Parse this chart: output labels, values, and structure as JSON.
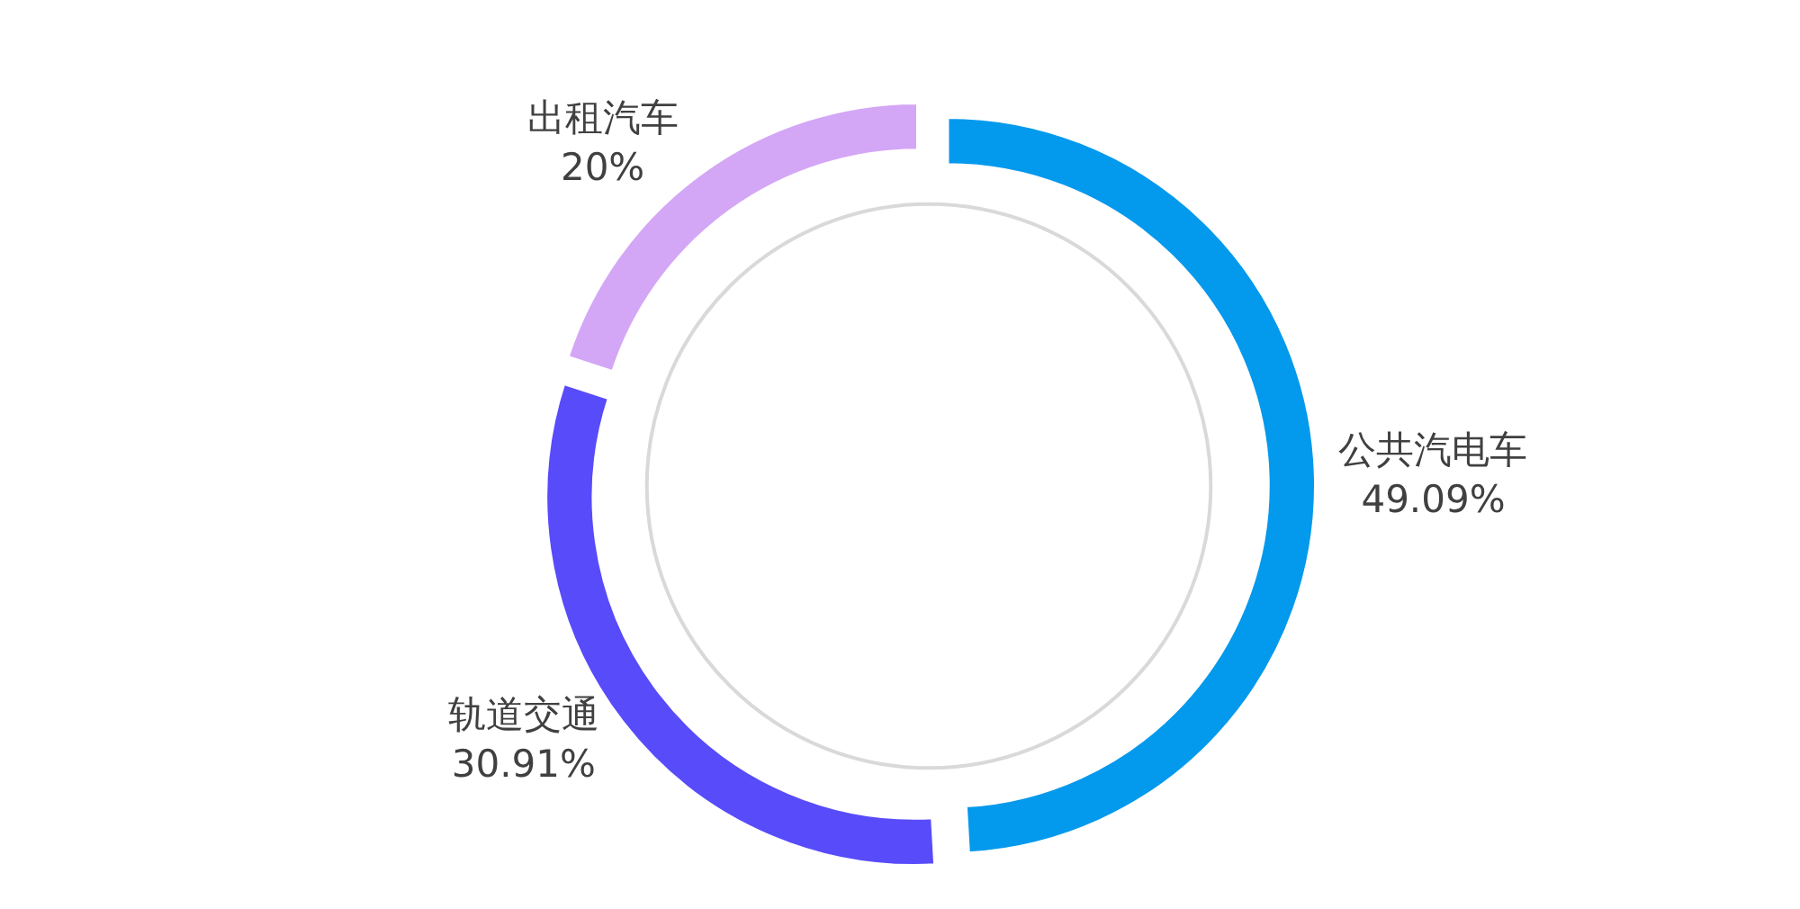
{
  "chart_data": {
    "type": "donut",
    "categories": [
      "公共汽电车",
      "轨道交通",
      "出租汽车"
    ],
    "values": [
      49.09,
      30.91,
      20
    ],
    "value_labels": [
      "49.09%",
      "30.91%",
      "20%"
    ],
    "colors": [
      "#0399ec",
      "#574bfa",
      "#d4a6f6"
    ]
  }
}
